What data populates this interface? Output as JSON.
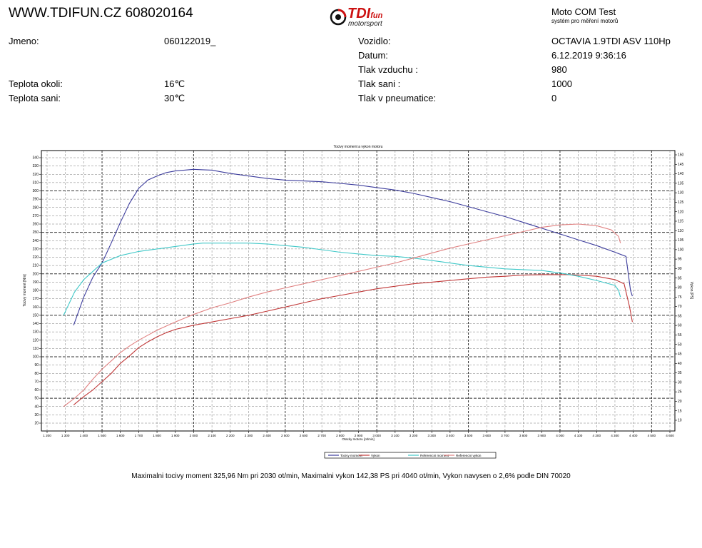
{
  "header": {
    "site": "WWW.TDIFUN.CZ 608020164",
    "logo_main": "TDI",
    "logo_fun": "fun",
    "logo_sub": "motorsport",
    "app_title": "Moto COM Test",
    "app_subtitle": "systém pro měření motorů"
  },
  "info": {
    "jmeno_label": "Jmeno:",
    "jmeno_value": "060122019_",
    "teplota_okoli_label": "Teplota okoli:",
    "teplota_okoli_value": "16℃",
    "teplota_sani_label": "Teplota sani:",
    "teplota_sani_value": "30℃",
    "vozidlo_label": "Vozidlo:",
    "vozidlo_value": "OCTAVIA 1.9TDI ASV 110Hp",
    "datum_label": "Datum:",
    "datum_value": "6.12.2019 9:36:16",
    "tlak_vzduchu_label": "Tlak vzduchu :",
    "tlak_vzduchu_value": "980",
    "tlak_sani_label": "Tlak sani :",
    "tlak_sani_value": "1000",
    "tlak_pneu_label": "Tlak v pneumatice:",
    "tlak_pneu_value": "0"
  },
  "chart_data": {
    "type": "line",
    "title": "Tocivy moment a vykon motoru",
    "xlabel": "Otacky motoru [ot/min]",
    "ylabel_left": "Tocivy moment [Nm]",
    "ylabel_right": "Vykon [PS]",
    "xlim": [
      1200,
      4600
    ],
    "ylim_left": [
      20,
      340
    ],
    "ylim_right": [
      10,
      150
    ],
    "x_ticks": [
      1200,
      1300,
      1400,
      1500,
      1600,
      1700,
      1800,
      1900,
      2000,
      2100,
      2200,
      2300,
      2400,
      2500,
      2600,
      2700,
      2800,
      2900,
      3000,
      3100,
      3200,
      3300,
      3400,
      3500,
      3600,
      3700,
      3800,
      3900,
      4000,
      4100,
      4200,
      4300,
      4400,
      4500,
      4600
    ],
    "x_tick_labels": [
      "1 200",
      "1 300",
      "1 400",
      "1 500",
      "1 600",
      "1 700",
      "1 800",
      "1 900",
      "2 000",
      "2 100",
      "2 200",
      "2 300",
      "2 400",
      "2 500",
      "2 600",
      "2 700",
      "2 800",
      "2 900",
      "3 000",
      "3 100",
      "3 200",
      "3 300",
      "3 400",
      "3 500",
      "3 600",
      "3 700",
      "3 800",
      "3 900",
      "4 000",
      "4 100",
      "4 200",
      "4 300",
      "4 400",
      "4 500",
      "4 600"
    ],
    "y_left_ticks": [
      20,
      30,
      40,
      50,
      60,
      70,
      80,
      90,
      100,
      110,
      120,
      130,
      140,
      150,
      160,
      170,
      180,
      190,
      200,
      210,
      220,
      230,
      240,
      250,
      260,
      270,
      280,
      290,
      300,
      310,
      320,
      330,
      340
    ],
    "y_right_ticks": [
      10,
      15,
      20,
      25,
      30,
      35,
      40,
      45,
      50,
      55,
      60,
      65,
      70,
      75,
      80,
      85,
      90,
      95,
      100,
      105,
      110,
      115,
      120,
      125,
      130,
      135,
      140,
      145,
      150
    ],
    "legend": [
      "Tocivy moment",
      "Vykon",
      "Referencni moment",
      "Referencni vykon"
    ],
    "legend_position": "bottom",
    "grid": true,
    "series": [
      {
        "name": "Tocivy moment",
        "axis": "left",
        "color": "#3c3c9c",
        "points": [
          [
            1345,
            138
          ],
          [
            1400,
            172
          ],
          [
            1450,
            196
          ],
          [
            1500,
            213
          ],
          [
            1550,
            237
          ],
          [
            1600,
            262
          ],
          [
            1650,
            285
          ],
          [
            1700,
            303
          ],
          [
            1750,
            313
          ],
          [
            1800,
            318
          ],
          [
            1850,
            322
          ],
          [
            1900,
            324
          ],
          [
            1950,
            325
          ],
          [
            2000,
            326
          ],
          [
            2050,
            325.5
          ],
          [
            2100,
            325
          ],
          [
            2150,
            323
          ],
          [
            2200,
            321
          ],
          [
            2300,
            318
          ],
          [
            2400,
            315
          ],
          [
            2500,
            313
          ],
          [
            2600,
            312
          ],
          [
            2700,
            311
          ],
          [
            2800,
            309
          ],
          [
            2900,
            307
          ],
          [
            3000,
            304
          ],
          [
            3100,
            301
          ],
          [
            3200,
            297
          ],
          [
            3300,
            292
          ],
          [
            3400,
            287
          ],
          [
            3500,
            281
          ],
          [
            3600,
            275
          ],
          [
            3700,
            269
          ],
          [
            3800,
            262
          ],
          [
            3900,
            255
          ],
          [
            4000,
            248
          ],
          [
            4100,
            241
          ],
          [
            4200,
            234
          ],
          [
            4300,
            226
          ],
          [
            4360,
            221
          ],
          [
            4385,
            180
          ],
          [
            4395,
            173
          ]
        ]
      },
      {
        "name": "Vykon",
        "axis": "left",
        "color": "#c03838",
        "points": [
          [
            1345,
            42
          ],
          [
            1400,
            52
          ],
          [
            1450,
            60
          ],
          [
            1500,
            70
          ],
          [
            1550,
            80
          ],
          [
            1600,
            92
          ],
          [
            1650,
            101
          ],
          [
            1700,
            111
          ],
          [
            1750,
            118
          ],
          [
            1800,
            124
          ],
          [
            1850,
            129
          ],
          [
            1900,
            133
          ],
          [
            2000,
            138
          ],
          [
            2100,
            142
          ],
          [
            2200,
            146
          ],
          [
            2300,
            150
          ],
          [
            2400,
            155
          ],
          [
            2500,
            160
          ],
          [
            2600,
            165
          ],
          [
            2700,
            170
          ],
          [
            2800,
            174
          ],
          [
            2900,
            178
          ],
          [
            3000,
            182
          ],
          [
            3100,
            185
          ],
          [
            3200,
            188
          ],
          [
            3300,
            190
          ],
          [
            3400,
            192
          ],
          [
            3500,
            194
          ],
          [
            3600,
            196
          ],
          [
            3700,
            197
          ],
          [
            3800,
            198.5
          ],
          [
            3900,
            199
          ],
          [
            4000,
            199
          ],
          [
            4040,
            199
          ],
          [
            4100,
            198.5
          ],
          [
            4200,
            197
          ],
          [
            4300,
            193
          ],
          [
            4350,
            188
          ],
          [
            4380,
            160
          ],
          [
            4395,
            142
          ]
        ]
      },
      {
        "name": "Referencni moment",
        "axis": "left",
        "color": "#40c8c8",
        "points": [
          [
            1290,
            150
          ],
          [
            1350,
            178
          ],
          [
            1400,
            193
          ],
          [
            1450,
            203
          ],
          [
            1500,
            213
          ],
          [
            1600,
            222
          ],
          [
            1700,
            227
          ],
          [
            1800,
            230
          ],
          [
            1900,
            233
          ],
          [
            2000,
            236
          ],
          [
            2050,
            237
          ],
          [
            2100,
            237
          ],
          [
            2200,
            237
          ],
          [
            2300,
            237
          ],
          [
            2400,
            236
          ],
          [
            2500,
            234
          ],
          [
            2600,
            232
          ],
          [
            2700,
            229
          ],
          [
            2800,
            226
          ],
          [
            2900,
            224
          ],
          [
            3000,
            222
          ],
          [
            3100,
            221
          ],
          [
            3200,
            219
          ],
          [
            3300,
            216
          ],
          [
            3400,
            213
          ],
          [
            3500,
            210
          ],
          [
            3600,
            208
          ],
          [
            3700,
            206
          ],
          [
            3800,
            205
          ],
          [
            3900,
            204
          ],
          [
            4000,
            201
          ],
          [
            4100,
            197
          ],
          [
            4200,
            192
          ],
          [
            4300,
            186
          ],
          [
            4320,
            180
          ],
          [
            4330,
            172
          ]
        ]
      },
      {
        "name": "Referencni vykon",
        "axis": "left",
        "color": "#e08080",
        "points": [
          [
            1290,
            40
          ],
          [
            1350,
            50
          ],
          [
            1400,
            60
          ],
          [
            1450,
            73
          ],
          [
            1500,
            85
          ],
          [
            1550,
            95
          ],
          [
            1600,
            105
          ],
          [
            1650,
            113
          ],
          [
            1700,
            120
          ],
          [
            1750,
            126
          ],
          [
            1800,
            132
          ],
          [
            1900,
            142
          ],
          [
            2000,
            151
          ],
          [
            2100,
            159
          ],
          [
            2200,
            165
          ],
          [
            2300,
            172
          ],
          [
            2400,
            178
          ],
          [
            2500,
            183
          ],
          [
            2600,
            188
          ],
          [
            2700,
            193
          ],
          [
            2800,
            198
          ],
          [
            2900,
            203
          ],
          [
            3000,
            208
          ],
          [
            3100,
            213
          ],
          [
            3200,
            219
          ],
          [
            3300,
            225
          ],
          [
            3400,
            231
          ],
          [
            3500,
            236
          ],
          [
            3600,
            241
          ],
          [
            3700,
            246
          ],
          [
            3800,
            251
          ],
          [
            3900,
            256
          ],
          [
            4000,
            259
          ],
          [
            4100,
            260
          ],
          [
            4200,
            258
          ],
          [
            4280,
            253
          ],
          [
            4320,
            245
          ],
          [
            4330,
            237
          ]
        ]
      }
    ]
  },
  "footer": {
    "text": "Maximalni tocivy moment 325,96 Nm pri 2030 ot/min,  Maximalni vykon 142,38 PS pri 4040 ot/min,  Vykon navysen o 2,6% podle DIN 70020"
  }
}
